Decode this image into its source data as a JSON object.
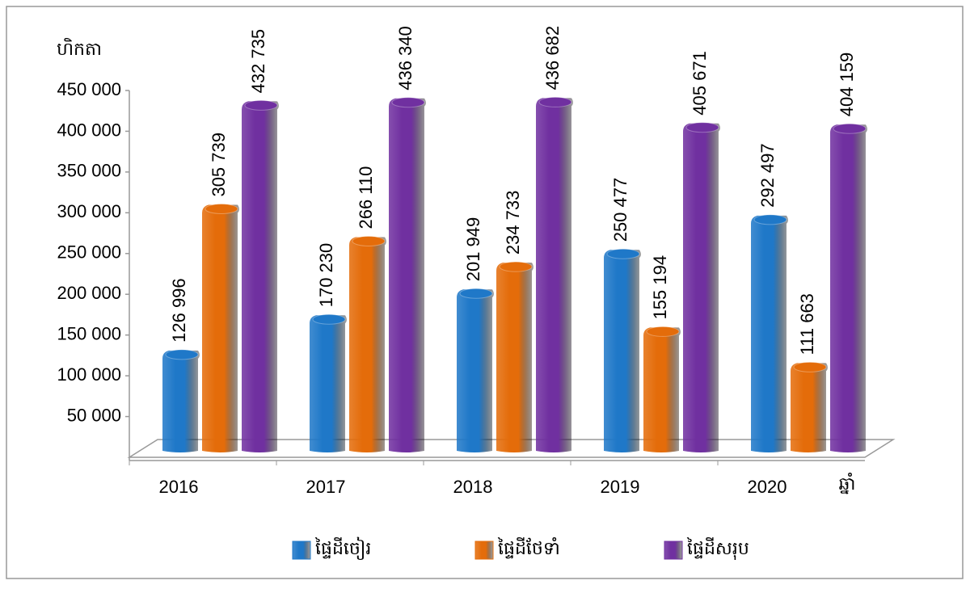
{
  "chart_data": {
    "type": "bar",
    "y_label": "ហិកតា",
    "x_label": "ឆ្នាំ",
    "categories": [
      "2016",
      "2017",
      "2018",
      "2019",
      "2020"
    ],
    "series": [
      {
        "name": "ផ្ទៃដីចៀរ",
        "color": "#1f78c8",
        "values": [
          126996,
          170230,
          201949,
          250477,
          292497
        ],
        "value_labels": [
          "126 996",
          "170 230",
          "201 949",
          "250 477",
          "292 497"
        ]
      },
      {
        "name": "ផ្ទៃដីថែទាំ",
        "color": "#e46c0a",
        "values": [
          305739,
          266110,
          234733,
          155194,
          111663
        ],
        "value_labels": [
          "305 739",
          "266 110",
          "234 733",
          "155 194",
          "111 663"
        ]
      },
      {
        "name": "ផ្ទៃដីសរុប",
        "color": "#7030a0",
        "values": [
          432735,
          436340,
          436682,
          405671,
          404159
        ],
        "value_labels": [
          "432 735",
          "436 340",
          "436 682",
          "405 671",
          "404 159"
        ]
      }
    ],
    "ylim": [
      0,
      450000
    ],
    "yticks": [
      {
        "value": 50000,
        "label": "50 000"
      },
      {
        "value": 100000,
        "label": "100 000"
      },
      {
        "value": 150000,
        "label": "150 000"
      },
      {
        "value": 200000,
        "label": "200 000"
      },
      {
        "value": 250000,
        "label": "250 000"
      },
      {
        "value": 300000,
        "label": "300 000"
      },
      {
        "value": 350000,
        "label": "350 000"
      },
      {
        "value": 400000,
        "label": "400 000"
      },
      {
        "value": 450000,
        "label": "450 000"
      }
    ],
    "grid": false,
    "legend": "bottom"
  }
}
